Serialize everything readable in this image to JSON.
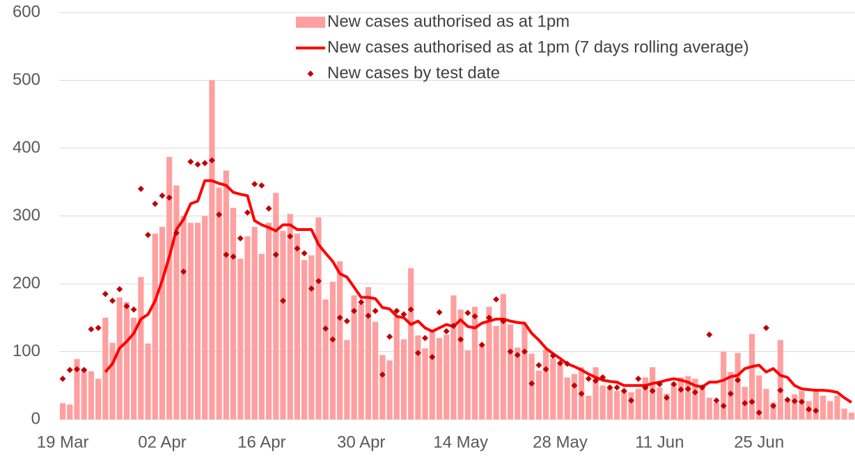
{
  "chart_data": {
    "type": "bar",
    "categories": [
      "19 Mar",
      null,
      null,
      null,
      null,
      null,
      null,
      null,
      null,
      null,
      null,
      null,
      null,
      null,
      "02 Apr",
      null,
      null,
      null,
      null,
      null,
      null,
      null,
      null,
      null,
      null,
      null,
      null,
      null,
      "16 Apr",
      null,
      null,
      null,
      null,
      null,
      null,
      null,
      null,
      null,
      null,
      null,
      null,
      null,
      "30 Apr",
      null,
      null,
      null,
      null,
      null,
      null,
      null,
      null,
      null,
      null,
      null,
      null,
      null,
      "14 May",
      null,
      null,
      null,
      null,
      null,
      null,
      null,
      null,
      null,
      null,
      null,
      null,
      null,
      "28 May",
      null,
      null,
      null,
      null,
      null,
      null,
      null,
      null,
      null,
      null,
      null,
      null,
      null,
      "11 Jun",
      null,
      null,
      null,
      null,
      null,
      null,
      null,
      null,
      null,
      null,
      null,
      null,
      null,
      "25 Jun",
      null,
      null,
      null,
      null,
      null,
      null,
      null,
      null,
      null,
      null,
      null,
      null,
      null
    ],
    "series": [
      {
        "name": "New cases authorised as at 1pm",
        "type": "bar",
        "color": "#ff9f9f",
        "values": [
          24,
          22,
          89,
          75,
          71,
          60,
          150,
          113,
          180,
          173,
          150,
          210,
          112,
          274,
          284,
          387,
          345,
          300,
          290,
          290,
          300,
          500,
          342,
          367,
          312,
          237,
          270,
          284,
          244,
          290,
          334,
          278,
          303,
          274,
          235,
          242,
          298,
          177,
          203,
          233,
          117,
          183,
          170,
          195,
          144,
          95,
          87,
          152,
          118,
          223,
          124,
          105,
          130,
          120,
          125,
          183,
          162,
          102,
          166,
          110,
          166,
          138,
          185,
          140,
          106,
          140,
          97,
          72,
          103,
          90,
          82,
          62,
          67,
          77,
          35,
          77,
          50,
          47,
          42,
          42,
          40,
          45,
          62,
          77,
          47,
          38,
          53,
          62,
          64,
          60,
          45,
          32,
          25,
          100,
          70,
          98,
          48,
          126,
          65,
          45,
          25,
          117,
          30,
          37,
          42,
          27,
          45,
          35,
          27,
          35,
          16,
          10
        ]
      },
      {
        "name": "New cases authorised as at 1pm (7 days rolling average)",
        "type": "line",
        "color": "#ff0000",
        "values": [
          null,
          null,
          null,
          null,
          null,
          null,
          70,
          82,
          105,
          115,
          127,
          148,
          155,
          175,
          205,
          240,
          280,
          295,
          318,
          322,
          352,
          352,
          348,
          345,
          335,
          332,
          330,
          293,
          287,
          283,
          278,
          287,
          287,
          280,
          280,
          280,
          258,
          245,
          233,
          215,
          210,
          195,
          180,
          180,
          178,
          165,
          163,
          152,
          150,
          140,
          145,
          135,
          130,
          135,
          140,
          137,
          147,
          137,
          135,
          142,
          145,
          148,
          148,
          145,
          143,
          142,
          127,
          117,
          105,
          97,
          90,
          82,
          78,
          73,
          67,
          62,
          58,
          56,
          55,
          50,
          50,
          50,
          50,
          53,
          55,
          58,
          60,
          58,
          55,
          50,
          48,
          55,
          55,
          58,
          63,
          65,
          75,
          78,
          80,
          70,
          75,
          65,
          62,
          50,
          45,
          44,
          43,
          43,
          42,
          40,
          32,
          25
        ]
      },
      {
        "name": "New cases by test date",
        "type": "scatter",
        "color": "#c00000",
        "values": [
          60,
          73,
          74,
          73,
          133,
          135,
          185,
          175,
          192,
          167,
          162,
          340,
          272,
          318,
          330,
          327,
          275,
          218,
          380,
          376,
          378,
          382,
          302,
          243,
          240,
          267,
          305,
          347,
          345,
          311,
          243,
          175,
          270,
          252,
          245,
          193,
          204,
          134,
          118,
          150,
          145,
          160,
          173,
          153,
          160,
          66,
          122,
          160,
          155,
          162,
          98,
          120,
          92,
          158,
          130,
          138,
          118,
          157,
          152,
          110,
          150,
          177,
          145,
          100,
          95,
          100,
          53,
          80,
          74,
          94,
          83,
          82,
          50,
          38,
          60,
          57,
          62,
          47,
          47,
          42,
          28,
          60,
          47,
          42,
          52,
          32,
          52,
          44,
          45,
          40,
          47,
          125,
          28,
          20,
          38,
          58,
          24,
          26,
          10,
          135,
          20,
          43,
          29,
          27,
          26,
          15,
          13,
          null,
          null,
          null,
          null,
          null
        ]
      }
    ],
    "ylim": [
      0,
      600
    ],
    "yticks": [
      0,
      100,
      200,
      300,
      400,
      500,
      600
    ],
    "grid": true
  }
}
